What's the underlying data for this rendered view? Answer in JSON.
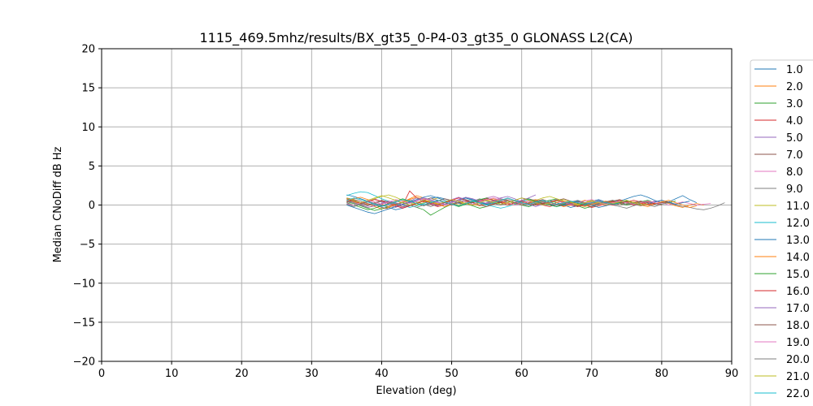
{
  "chart_data": {
    "type": "line",
    "title": "1115_469.5mhz/results/BX_gt35_0-P4-03_gt35_0 GLONASS L2(CA)",
    "xlabel": "Elevation (deg)",
    "ylabel": "Median CNoDiff dB Hz",
    "xlim": [
      0,
      90
    ],
    "ylim": [
      -20,
      20
    ],
    "xticks": [
      0,
      10,
      20,
      30,
      40,
      50,
      60,
      70,
      80,
      90
    ],
    "yticks": [
      -20,
      -15,
      -10,
      -5,
      0,
      5,
      10,
      15,
      20
    ],
    "grid": true,
    "legend_position": "right, outside plot",
    "series": [
      {
        "name": "1.0",
        "color": "#1f77b4",
        "x_start": 35,
        "x_end": 85,
        "values": [
          1.3,
          1.1,
          0.8,
          0.5,
          0.2,
          0.0,
          -0.3,
          -0.6,
          -0.4,
          -0.1,
          0.3,
          0.6,
          0.9,
          1.0,
          0.8,
          0.5,
          0.2,
          0.1,
          0.3,
          0.6,
          0.9,
          1.1,
          0.8,
          0.5,
          0.2,
          0.0,
          -0.2,
          0.1,
          0.4,
          0.6,
          0.3,
          0.0,
          -0.3,
          -0.1,
          0.2,
          0.5,
          0.7,
          0.4,
          0.2,
          0.5,
          0.8,
          1.1,
          1.3,
          1.0,
          0.6,
          0.3,
          0.4,
          0.8,
          1.2,
          0.7,
          0.3
        ]
      },
      {
        "name": "2.0",
        "color": "#ff7f0e",
        "x_start": 35,
        "x_end": 86,
        "values": [
          0.8,
          0.5,
          0.3,
          0.1,
          -0.2,
          -0.5,
          -0.3,
          0.0,
          0.4,
          0.8,
          1.2,
          0.9,
          0.5,
          0.2,
          0.0,
          0.3,
          0.6,
          0.4,
          0.1,
          -0.1,
          0.2,
          0.5,
          0.8,
          0.6,
          0.3,
          0.0,
          0.2,
          0.5,
          0.7,
          0.4,
          0.1,
          -0.2,
          0.0,
          0.3,
          0.6,
          0.4,
          0.1,
          -0.1,
          0.2,
          0.4,
          0.6,
          0.3,
          0.0,
          -0.2,
          0.1,
          0.4,
          0.2,
          -0.1,
          -0.3,
          0.0,
          0.2,
          0.0
        ]
      },
      {
        "name": "3.0",
        "color": "#2ca02c",
        "x_start": 35,
        "x_end": 82,
        "values": [
          0.4,
          0.2,
          -0.1,
          -0.4,
          -0.7,
          -0.5,
          -0.2,
          0.1,
          0.3,
          0.0,
          -0.3,
          -0.6,
          -1.3,
          -0.8,
          -0.3,
          0.1,
          0.4,
          0.2,
          -0.1,
          -0.4,
          -0.2,
          0.1,
          0.3,
          0.5,
          0.2,
          0.0,
          -0.2,
          0.1,
          0.4,
          0.6,
          0.8,
          0.5,
          0.2,
          -0.1,
          -0.4,
          -0.2,
          0.1,
          0.3,
          0.5,
          0.2,
          0.0,
          0.2,
          0.4,
          0.6,
          0.3,
          0.1,
          0.3,
          0.5
        ]
      },
      {
        "name": "4.0",
        "color": "#d62728",
        "x_start": 35,
        "x_end": 80,
        "values": [
          0.6,
          0.3,
          0.0,
          -0.3,
          -0.1,
          0.2,
          0.5,
          0.3,
          0.0,
          1.8,
          0.9,
          0.4,
          0.1,
          -0.2,
          0.0,
          0.3,
          0.6,
          0.9,
          0.6,
          0.3,
          0.0,
          0.2,
          0.4,
          0.2,
          0.0,
          0.3,
          0.5,
          0.2,
          0.0,
          -0.2,
          0.1,
          0.3,
          0.5,
          0.3,
          0.0,
          -0.3,
          -0.1,
          0.2,
          0.4,
          0.6,
          0.3,
          0.0,
          0.2,
          0.4,
          0.2,
          0.0
        ]
      },
      {
        "name": "5.0",
        "color": "#9467bd",
        "x_start": 35,
        "x_end": 75,
        "values": [
          0.2,
          -0.2,
          0.1,
          0.5,
          0.8,
          0.4,
          0.0,
          -0.3,
          0.1,
          0.5,
          0.9,
          0.6,
          0.2,
          -0.1,
          0.3,
          0.7,
          1.0,
          0.7,
          0.3,
          0.0,
          0.3,
          0.6,
          0.9,
          1.1,
          0.8,
          0.4,
          0.1,
          -0.2,
          0.1,
          0.4,
          0.7,
          0.4,
          0.1,
          -0.2,
          0.0,
          0.3,
          0.6,
          0.3,
          0.0,
          0.2,
          0.4
        ]
      },
      {
        "name": "7.0",
        "color": "#8c564b",
        "x_start": 35,
        "x_end": 83,
        "values": [
          0.9,
          0.7,
          0.5,
          0.2,
          0.0,
          -0.3,
          -0.5,
          -0.2,
          0.1,
          0.4,
          0.2,
          -0.1,
          0.2,
          0.5,
          0.8,
          0.6,
          0.3,
          0.1,
          0.4,
          0.7,
          0.5,
          0.2,
          0.0,
          0.3,
          0.6,
          0.9,
          0.7,
          0.4,
          0.1,
          0.3,
          0.6,
          0.8,
          0.5,
          0.2,
          0.0,
          -0.2,
          0.1,
          0.3,
          0.5,
          0.7,
          0.4,
          0.1,
          -0.1,
          0.2,
          0.4,
          0.6,
          0.3,
          0.1,
          0.3
        ]
      },
      {
        "name": "8.0",
        "color": "#e377c2",
        "x_start": 35,
        "x_end": 87,
        "values": [
          0.3,
          0.5,
          0.2,
          -0.1,
          0.2,
          0.5,
          0.3,
          0.0,
          -0.3,
          0.0,
          0.3,
          0.6,
          0.4,
          0.1,
          0.4,
          0.7,
          0.9,
          0.6,
          0.3,
          0.6,
          0.9,
          1.1,
          0.8,
          0.5,
          0.2,
          0.5,
          0.8,
          0.6,
          0.3,
          0.0,
          0.3,
          0.5,
          0.2,
          0.0,
          0.2,
          0.4,
          0.2,
          -0.1,
          0.1,
          0.3,
          0.5,
          0.3,
          0.1,
          0.3,
          0.5,
          0.3,
          0.0,
          0.2,
          0.4,
          0.2,
          0.0,
          0.1,
          0.2
        ]
      },
      {
        "name": "9.0",
        "color": "#7f7f7f",
        "x_start": 35,
        "x_end": 89,
        "values": [
          0.5,
          0.3,
          0.1,
          -0.1,
          0.2,
          0.5,
          0.3,
          0.0,
          0.3,
          0.6,
          0.4,
          0.1,
          -0.2,
          0.1,
          0.4,
          0.2,
          -0.1,
          0.2,
          0.5,
          0.8,
          0.5,
          0.2,
          0.0,
          0.3,
          0.6,
          0.4,
          0.1,
          0.3,
          0.5,
          0.2,
          0.0,
          0.2,
          0.4,
          0.1,
          -0.1,
          0.2,
          0.4,
          0.2,
          0.0,
          -0.2,
          -0.4,
          -0.1,
          0.2,
          0.0,
          -0.2,
          0.1,
          0.3,
          0.0,
          -0.2,
          -0.3,
          -0.5,
          -0.6,
          -0.4,
          -0.1,
          0.3
        ]
      },
      {
        "name": "11.0",
        "color": "#bcbd22",
        "x_start": 35,
        "x_end": 78,
        "values": [
          0.7,
          0.4,
          0.1,
          0.4,
          0.8,
          1.1,
          1.3,
          1.0,
          0.6,
          0.3,
          0.0,
          0.3,
          0.6,
          0.9,
          0.6,
          0.3,
          0.0,
          0.3,
          0.5,
          0.3,
          0.1,
          0.4,
          0.7,
          0.5,
          0.2,
          0.0,
          0.3,
          0.6,
          0.9,
          1.1,
          0.8,
          0.5,
          0.2,
          0.0,
          0.3,
          0.6,
          0.4,
          0.1,
          0.3,
          0.5,
          0.3,
          0.1,
          0.3,
          0.5
        ]
      },
      {
        "name": "12.0",
        "color": "#17becf",
        "x_start": 35,
        "x_end": 80,
        "values": [
          1.2,
          1.5,
          1.7,
          1.6,
          1.2,
          0.8,
          0.5,
          0.2,
          0.0,
          -0.3,
          -0.1,
          0.2,
          0.5,
          0.3,
          0.0,
          0.3,
          0.6,
          0.9,
          0.6,
          0.3,
          0.0,
          -0.2,
          -0.4,
          -0.2,
          0.1,
          0.4,
          0.7,
          0.5,
          0.2,
          0.0,
          -0.2,
          0.1,
          0.3,
          0.5,
          0.3,
          0.0,
          0.2,
          0.4,
          0.6,
          0.4,
          0.1,
          0.3,
          0.5,
          0.3,
          0.1,
          0.3
        ]
      },
      {
        "name": "13.0",
        "color": "#1f77b4",
        "x_start": 35,
        "x_end": 84,
        "values": [
          0.0,
          -0.3,
          -0.6,
          -0.9,
          -1.1,
          -0.8,
          -0.5,
          -0.2,
          0.1,
          0.4,
          0.7,
          1.0,
          1.2,
          0.9,
          0.6,
          0.3,
          0.6,
          0.9,
          0.7,
          0.4,
          0.1,
          0.3,
          0.5,
          0.3,
          0.0,
          0.2,
          0.5,
          0.7,
          0.4,
          0.1,
          -0.2,
          0.0,
          0.3,
          0.5,
          0.3,
          0.0,
          -0.3,
          -0.1,
          0.2,
          0.4,
          0.6,
          0.3,
          0.0,
          0.2,
          0.4,
          0.6,
          0.4,
          0.1,
          0.3,
          0.5
        ]
      },
      {
        "name": "14.0",
        "color": "#ff7f0e",
        "x_start": 35,
        "x_end": 85,
        "values": [
          0.5,
          0.8,
          1.0,
          0.7,
          0.4,
          0.1,
          -0.2,
          0.1,
          0.4,
          0.7,
          1.0,
          0.7,
          0.4,
          0.1,
          -0.2,
          0.1,
          0.4,
          0.2,
          0.0,
          0.3,
          0.6,
          0.8,
          0.5,
          0.2,
          0.0,
          0.3,
          0.5,
          0.7,
          0.4,
          0.1,
          0.3,
          0.5,
          0.3,
          0.0,
          -0.2,
          0.1,
          0.3,
          0.5,
          0.3,
          0.0,
          0.2,
          0.4,
          0.2,
          0.0,
          0.2,
          0.4,
          0.6,
          0.3,
          0.0,
          -0.3,
          -0.1
        ]
      },
      {
        "name": "15.0",
        "color": "#2ca02c",
        "x_start": 35,
        "x_end": 77,
        "values": [
          0.3,
          0.0,
          -0.3,
          -0.6,
          -0.4,
          -0.1,
          0.2,
          0.5,
          0.8,
          0.5,
          0.2,
          0.0,
          0.3,
          0.6,
          0.4,
          0.1,
          -0.2,
          0.1,
          0.4,
          0.7,
          0.9,
          0.6,
          0.3,
          0.0,
          0.3,
          0.6,
          0.8,
          0.5,
          0.2,
          0.0,
          -0.2,
          0.1,
          0.4,
          0.2,
          0.0,
          0.3,
          0.5,
          0.3,
          0.1,
          0.3,
          0.5,
          0.3,
          0.1
        ]
      },
      {
        "name": "16.0",
        "color": "#d62728",
        "x_start": 35,
        "x_end": 79,
        "values": [
          0.8,
          0.5,
          0.2,
          0.4,
          0.7,
          0.5,
          0.2,
          -0.1,
          -0.4,
          -0.1,
          0.2,
          0.5,
          0.3,
          0.0,
          0.3,
          0.6,
          0.9,
          0.6,
          0.3,
          0.5,
          0.8,
          0.6,
          0.3,
          0.0,
          0.3,
          0.5,
          0.2,
          0.0,
          0.2,
          0.4,
          0.6,
          0.3,
          0.0,
          -0.2,
          0.1,
          0.3,
          0.5,
          0.3,
          0.0,
          0.2,
          0.4,
          0.6,
          0.4,
          0.1,
          0.2
        ]
      },
      {
        "name": "17.0",
        "color": "#9467bd",
        "x_start": 35,
        "x_end": 62,
        "values": [
          0.6,
          0.3,
          0.0,
          -0.3,
          -0.1,
          0.2,
          0.5,
          0.3,
          0.0,
          0.3,
          0.6,
          0.9,
          0.7,
          0.4,
          0.1,
          0.4,
          0.7,
          1.0,
          0.8,
          0.5,
          0.2,
          0.5,
          0.8,
          0.6,
          0.3,
          0.6,
          0.9,
          1.3
        ]
      },
      {
        "name": "18.0",
        "color": "#8c564b",
        "x_start": 35,
        "x_end": 81,
        "values": [
          0.4,
          0.6,
          0.3,
          0.0,
          0.3,
          0.6,
          0.4,
          0.1,
          -0.2,
          0.0,
          0.3,
          0.6,
          0.9,
          0.6,
          0.3,
          0.0,
          0.3,
          0.5,
          0.3,
          0.0,
          -0.2,
          0.1,
          0.4,
          0.6,
          0.3,
          0.0,
          0.3,
          0.5,
          0.7,
          0.4,
          0.1,
          -0.1,
          0.2,
          0.4,
          0.2,
          0.0,
          0.2,
          0.4,
          0.6,
          0.3,
          0.1,
          0.3,
          0.5,
          0.3,
          0.1,
          0.3,
          0.4
        ]
      },
      {
        "name": "19.0",
        "color": "#e377c2",
        "x_start": 35,
        "x_end": 80,
        "values": [
          0.2,
          0.0,
          0.3,
          0.6,
          0.4,
          0.1,
          0.4,
          0.7,
          0.5,
          0.2,
          0.5,
          0.8,
          0.6,
          0.3,
          0.0,
          0.3,
          0.6,
          0.4,
          0.1,
          0.4,
          0.7,
          0.9,
          0.6,
          0.3,
          0.0,
          0.2,
          0.5,
          0.3,
          0.0,
          0.3,
          0.5,
          0.3,
          0.1,
          0.3,
          0.5,
          0.7,
          0.4,
          0.1,
          0.3,
          0.5,
          0.3,
          0.1,
          0.3,
          0.5,
          0.3,
          0.2
        ]
      },
      {
        "name": "20.0",
        "color": "#7f7f7f",
        "x_start": 35,
        "x_end": 76,
        "values": [
          0.1,
          -0.2,
          0.1,
          0.4,
          0.2,
          -0.1,
          0.2,
          0.5,
          0.3,
          0.0,
          -0.3,
          0.0,
          0.3,
          0.6,
          0.4,
          0.1,
          0.4,
          0.7,
          0.5,
          0.2,
          0.0,
          0.3,
          0.6,
          0.8,
          0.5,
          0.2,
          0.0,
          0.2,
          0.4,
          0.2,
          0.0,
          0.2,
          0.4,
          0.6,
          0.3,
          0.0,
          0.2,
          0.4,
          0.2,
          0.0,
          0.2,
          0.3
        ]
      },
      {
        "name": "21.0",
        "color": "#bcbd22",
        "x_start": 35,
        "x_end": 78,
        "values": [
          0.9,
          0.6,
          0.3,
          0.6,
          0.9,
          1.2,
          0.9,
          0.6,
          0.3,
          0.0,
          0.3,
          0.6,
          0.4,
          0.1,
          0.4,
          0.7,
          0.5,
          0.2,
          0.0,
          0.3,
          0.6,
          0.4,
          0.1,
          0.3,
          0.6,
          0.9,
          0.6,
          0.3,
          0.0,
          0.3,
          0.5,
          0.7,
          0.4,
          0.1,
          0.3,
          0.5,
          0.3,
          0.0,
          0.2,
          0.4,
          0.6,
          0.3,
          0.0,
          0.2
        ]
      },
      {
        "name": "22.0",
        "color": "#17becf",
        "x_start": 35,
        "x_end": 74,
        "values": [
          0.6,
          0.9,
          0.7,
          0.4,
          0.1,
          -0.2,
          0.1,
          0.4,
          0.7,
          0.5,
          0.2,
          0.0,
          0.3,
          0.6,
          0.4,
          0.1,
          -0.1,
          0.2,
          0.5,
          0.3,
          0.0,
          0.3,
          0.6,
          0.9,
          0.6,
          0.3,
          0.1,
          0.4,
          0.6,
          0.4,
          0.1,
          0.3,
          0.5,
          0.3,
          0.1,
          0.3,
          0.5,
          0.3,
          0.1,
          0.2
        ]
      }
    ]
  }
}
